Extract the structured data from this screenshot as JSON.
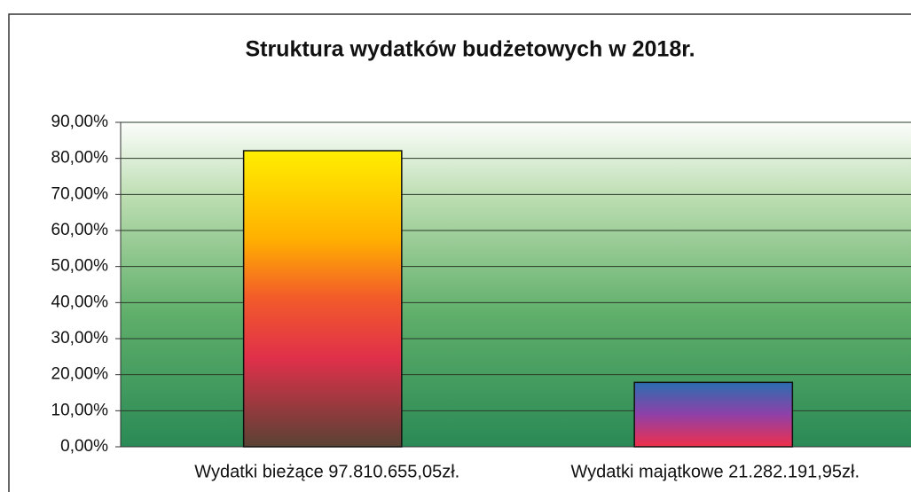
{
  "chart_data": {
    "type": "bar",
    "title": "Struktura wydatków budżetowych w 2018r.",
    "categories": [
      "Wydatki bieżące 97.810.655,05zł.",
      "Wydatki majątkowe 21.282.191,95zł."
    ],
    "values": [
      82.13,
      17.87
    ],
    "ylim": [
      0,
      90
    ],
    "yticks": [
      {
        "value": 0,
        "label": "0,00%"
      },
      {
        "value": 10,
        "label": "10,00%"
      },
      {
        "value": 20,
        "label": "20,00%"
      },
      {
        "value": 30,
        "label": "30,00%"
      },
      {
        "value": 40,
        "label": "40,00%"
      },
      {
        "value": 50,
        "label": "50,00%"
      },
      {
        "value": 60,
        "label": "60,00%"
      },
      {
        "value": 70,
        "label": "70,00%"
      },
      {
        "value": 80,
        "label": "80,00%"
      },
      {
        "value": 90,
        "label": "90,00%"
      }
    ],
    "grid": true
  }
}
